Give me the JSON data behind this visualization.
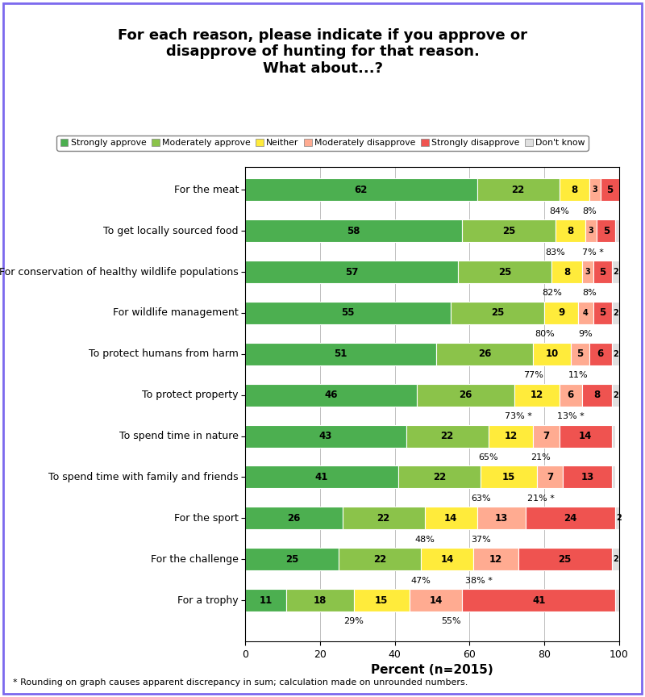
{
  "title": "For each reason, please indicate if you approve or\ndisapprove of hunting for that reason.\nWhat about...?",
  "xlabel": "Percent (n=2015)",
  "footnote": "* Rounding on graph causes apparent discrepancy in sum; calculation made on unrounded numbers.",
  "categories": [
    "For the meat",
    "To get locally sourced food",
    "For conservation of healthy wildlife populations",
    "For wildlife management",
    "To protect humans from harm",
    "To protect property",
    "To spend time in nature",
    "To spend time with family and friends",
    "For the sport",
    "For the challenge",
    "For a trophy"
  ],
  "data": [
    [
      62,
      22,
      8,
      3,
      5,
      0
    ],
    [
      58,
      25,
      8,
      3,
      5,
      1
    ],
    [
      57,
      25,
      8,
      3,
      5,
      2
    ],
    [
      55,
      25,
      9,
      4,
      5,
      2
    ],
    [
      51,
      26,
      10,
      5,
      6,
      2
    ],
    [
      46,
      26,
      12,
      6,
      8,
      2
    ],
    [
      43,
      22,
      12,
      7,
      14,
      1
    ],
    [
      41,
      22,
      15,
      7,
      13,
      1
    ],
    [
      26,
      22,
      14,
      13,
      24,
      2
    ],
    [
      25,
      22,
      14,
      12,
      25,
      2
    ],
    [
      11,
      18,
      15,
      14,
      41,
      1
    ]
  ],
  "approve_labels": [
    "84%",
    "83%",
    "82%",
    "80%",
    "77%",
    "73% *",
    "65%",
    "63%",
    "48%",
    "47%",
    "29%"
  ],
  "disapprove_labels": [
    "8%",
    "7% *",
    "8%",
    "9%",
    "11%",
    "13% *",
    "21%",
    "21% *",
    "37%",
    "38% *",
    "55%"
  ],
  "approve_pct": [
    84,
    83,
    82,
    80,
    77,
    73,
    65,
    63,
    48,
    47,
    29
  ],
  "disapprove_pct": [
    92,
    93,
    92,
    91,
    89,
    87,
    79,
    79,
    63,
    62.5,
    55
  ],
  "colors": [
    "#4CAF50",
    "#8BC34A",
    "#FFEB3B",
    "#FFAB91",
    "#EF5350",
    "#E0E0E0"
  ],
  "legend_labels": [
    "Strongly approve",
    "Moderately approve",
    "Neither",
    "Moderately disapprove",
    "Strongly disapprove",
    "Don't know"
  ],
  "border_color": "#7B68EE",
  "bar_height": 0.55,
  "xlim": [
    0,
    100
  ],
  "figsize": [
    8.0,
    8.64
  ],
  "dpi": 100
}
